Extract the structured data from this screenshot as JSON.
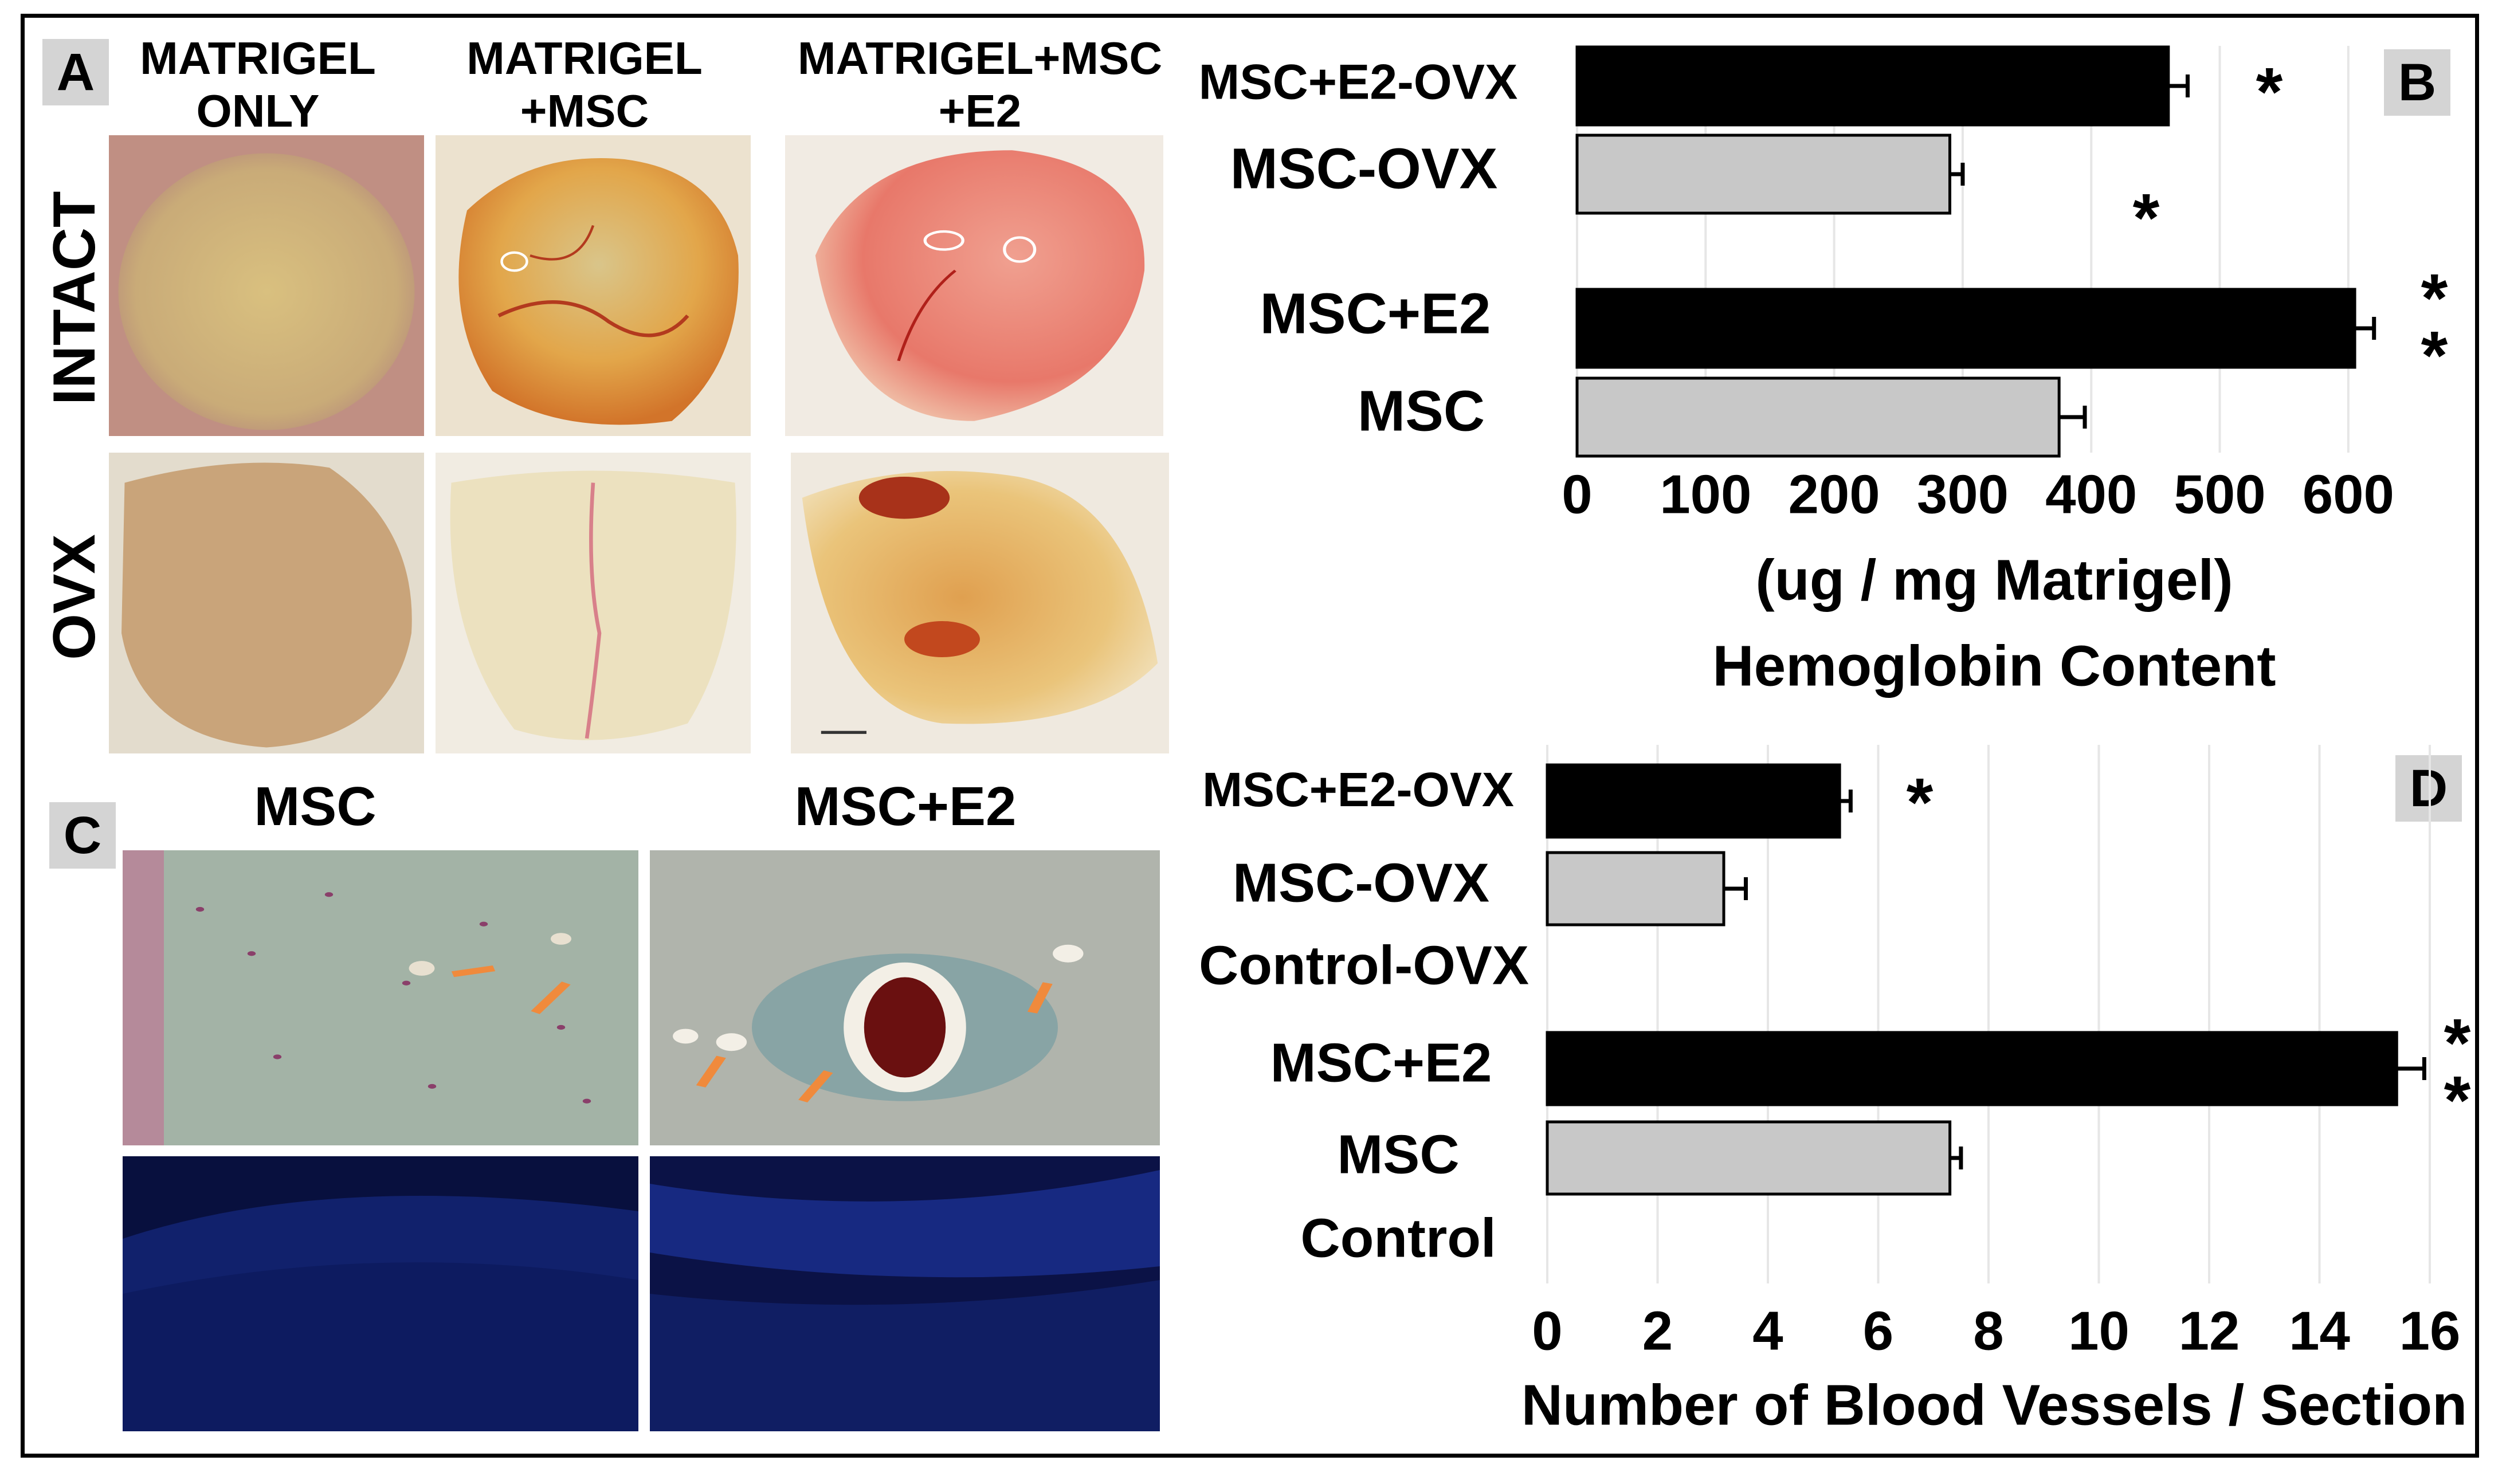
{
  "panels": {
    "a": {
      "label": "A",
      "columns": [
        "MATRIGEL\nONLY",
        "MATRIGEL\n+MSC",
        "MATRIGEL+MSC\n+E2"
      ],
      "rows": [
        "INTACT",
        "OVX"
      ]
    },
    "c": {
      "label": "C",
      "columns": [
        "MSC",
        "MSC+E2"
      ]
    }
  },
  "chart_data": [
    {
      "panel": "B",
      "type": "bar",
      "orientation": "horizontal",
      "categories": [
        "MSC+E2-OVX",
        "MSC-OVX",
        "MSC+E2",
        "MSC"
      ],
      "values": [
        460,
        290,
        605,
        375
      ],
      "error": [
        15,
        10,
        15,
        20
      ],
      "bar_colors": [
        "#000000",
        "#c8c8c8",
        "#000000",
        "#c8c8c8"
      ],
      "significance": [
        "*",
        "*",
        "**",
        ""
      ],
      "x_ticks": [
        0,
        100,
        200,
        300,
        400,
        500,
        600
      ],
      "xlim": [
        0,
        650
      ],
      "xlabel": "(ug / mg Matrigel)\nHemoglobin Content",
      "grid": true
    },
    {
      "panel": "D",
      "type": "bar",
      "orientation": "horizontal",
      "categories": [
        "MSC+E2-OVX",
        "MSC-OVX",
        "Control-OVX",
        "MSC+E2",
        "MSC",
        "Control"
      ],
      "values": [
        5.3,
        3.2,
        0,
        15.4,
        7.3,
        0
      ],
      "error": [
        0.2,
        0.4,
        0,
        0.5,
        0.2,
        0
      ],
      "bar_colors": [
        "#000000",
        "#c8c8c8",
        "#c8c8c8",
        "#000000",
        "#c8c8c8",
        "#c8c8c8"
      ],
      "significance": [
        "*",
        "",
        "",
        "**",
        "",
        ""
      ],
      "x_ticks": [
        0,
        2,
        4,
        6,
        8,
        10,
        12,
        14,
        16
      ],
      "xlim": [
        0,
        16
      ],
      "xlabel": "Number of Blood Vessels / Section",
      "grid": true
    }
  ]
}
